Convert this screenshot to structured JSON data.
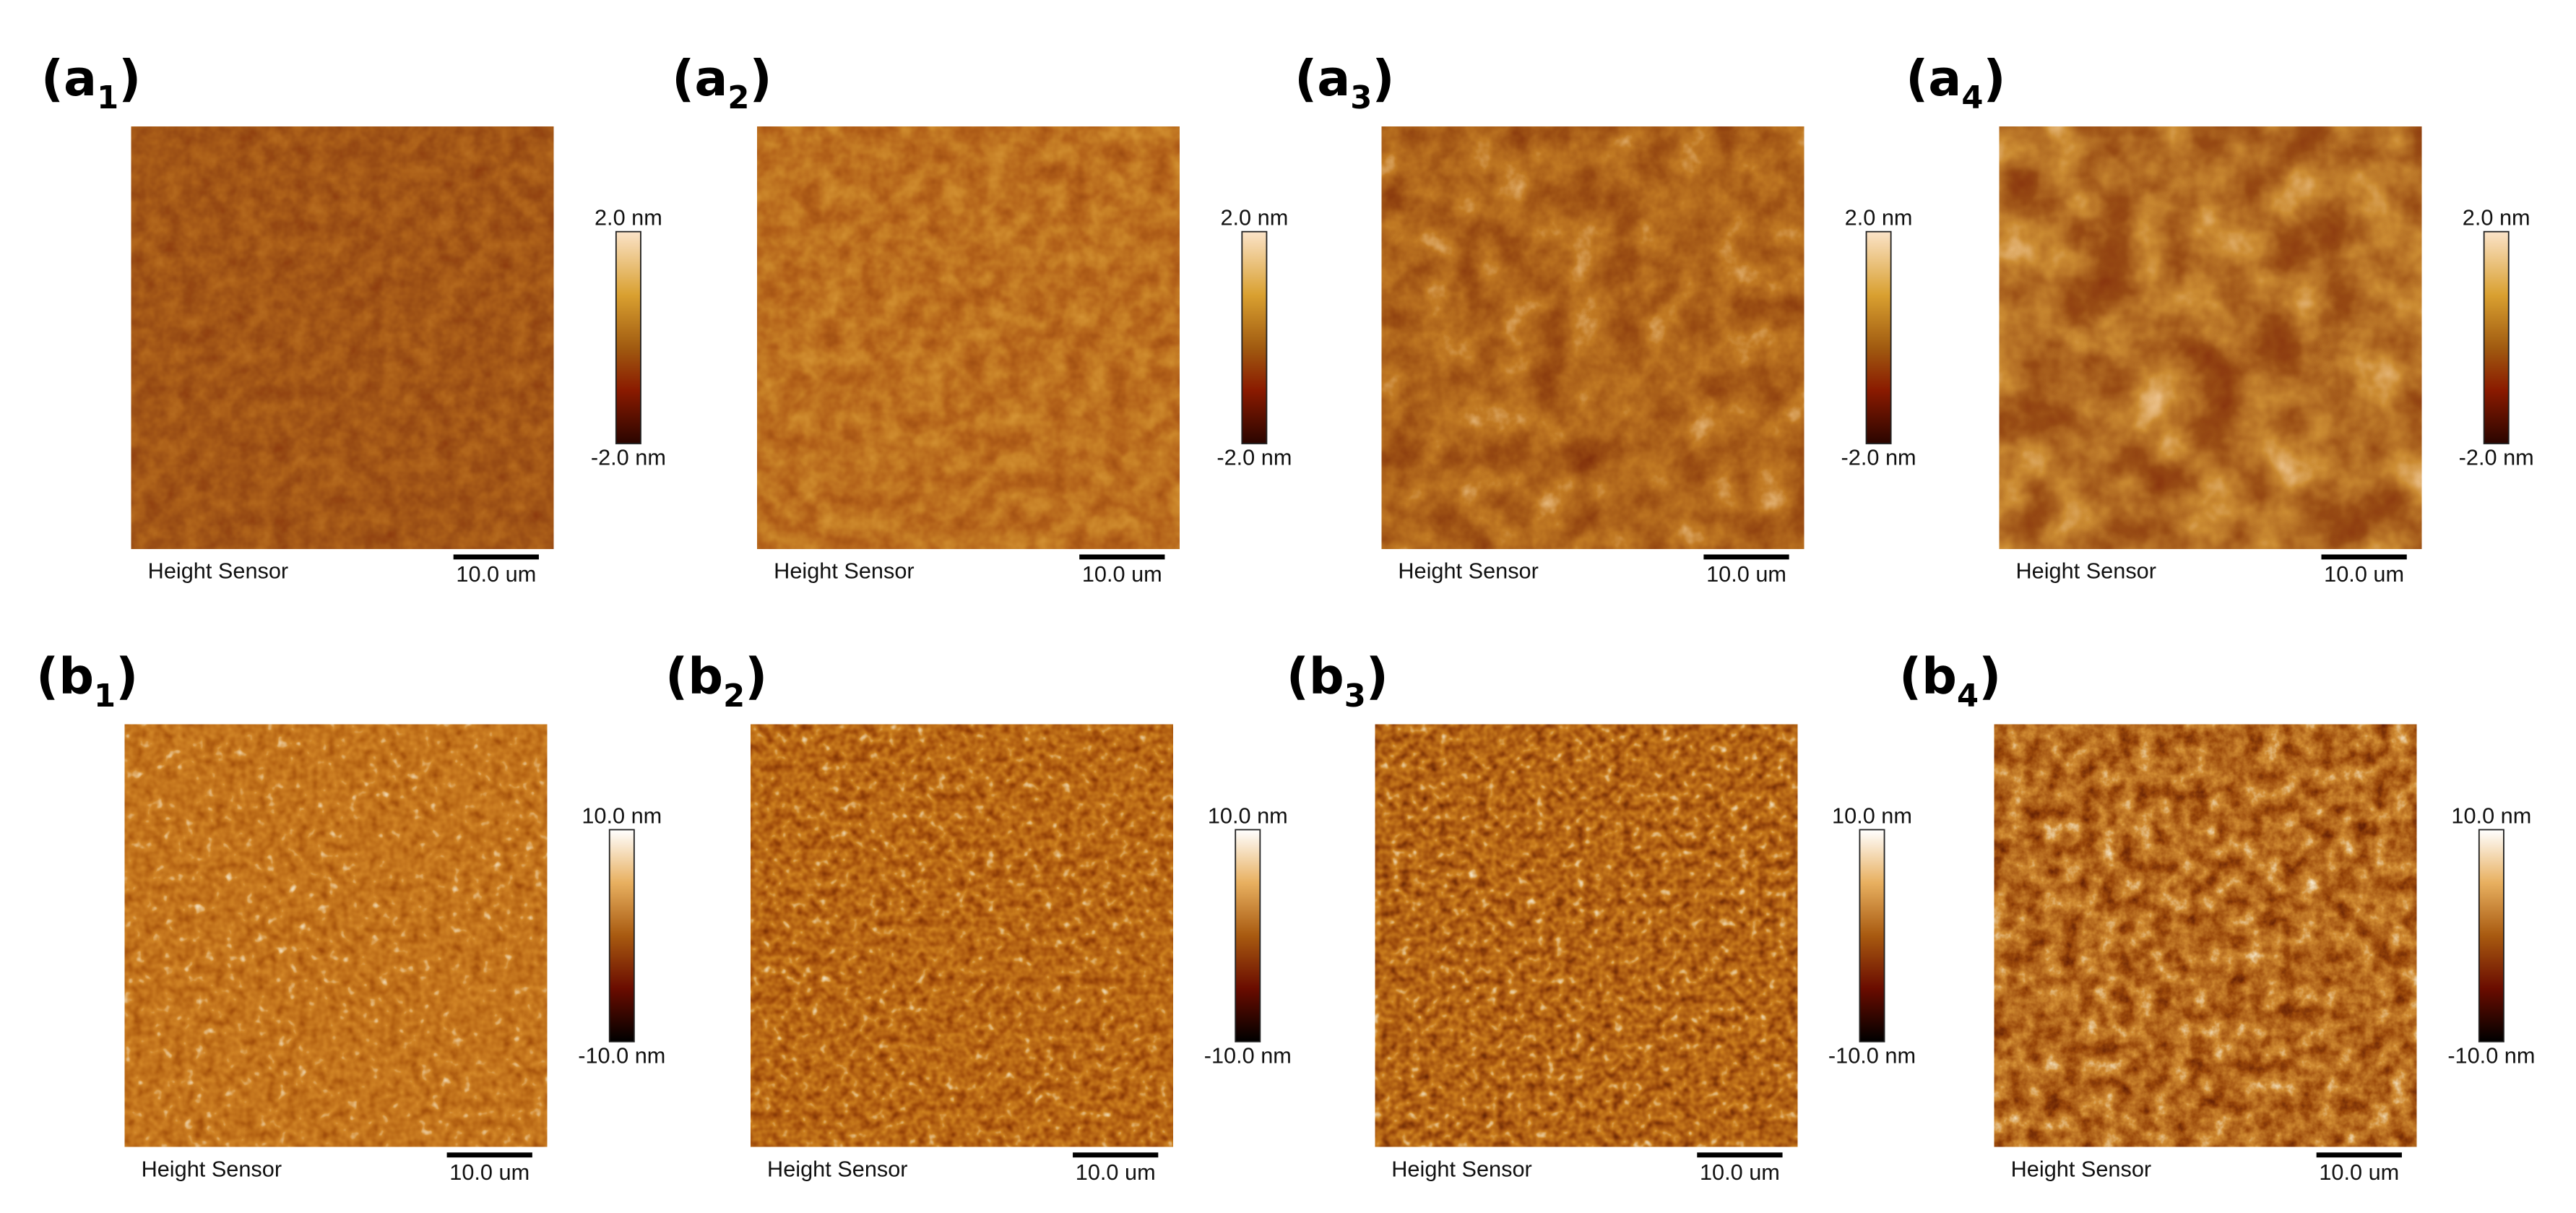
{
  "panels": [
    {
      "label": {
        "open": "(a",
        "sub": "1",
        "close": ")"
      },
      "scale_max": "2.0 nm",
      "scale_min": "-2.0 nm",
      "caption": "Height Sensor",
      "scale_bar": "10.0 um"
    },
    {
      "label": {
        "open": "(a",
        "sub": "2",
        "close": ")"
      },
      "scale_max": "2.0 nm",
      "scale_min": "-2.0 nm",
      "caption": "Height Sensor",
      "scale_bar": "10.0 um"
    },
    {
      "label": {
        "open": "(a",
        "sub": "3",
        "close": ")"
      },
      "scale_max": "2.0 nm",
      "scale_min": "-2.0 nm",
      "caption": "Height Sensor",
      "scale_bar": "10.0 um"
    },
    {
      "label": {
        "open": "(a",
        "sub": "4",
        "close": ")"
      },
      "scale_max": "2.0 nm",
      "scale_min": "-2.0 nm",
      "caption": "Height Sensor",
      "scale_bar": "10.0 um"
    },
    {
      "label": {
        "open": "(b",
        "sub": "1",
        "close": ")"
      },
      "scale_max": "10.0 nm",
      "scale_min": "-10.0 nm",
      "caption": "Height Sensor",
      "scale_bar": "10.0 um"
    },
    {
      "label": {
        "open": "(b",
        "sub": "2",
        "close": ")"
      },
      "scale_max": "10.0 nm",
      "scale_min": "-10.0 nm",
      "caption": "Height Sensor",
      "scale_bar": "10.0 um"
    },
    {
      "label": {
        "open": "(b",
        "sub": "3",
        "close": ")"
      },
      "scale_max": "10.0 nm",
      "scale_min": "-10.0 nm",
      "caption": "Height Sensor",
      "scale_bar": "10.0 um"
    },
    {
      "label": {
        "open": "(b",
        "sub": "4",
        "close": ")"
      },
      "scale_max": "10.0 nm",
      "scale_min": "-10.0 nm",
      "caption": "Height Sensor",
      "scale_bar": "10.0 um"
    }
  ]
}
